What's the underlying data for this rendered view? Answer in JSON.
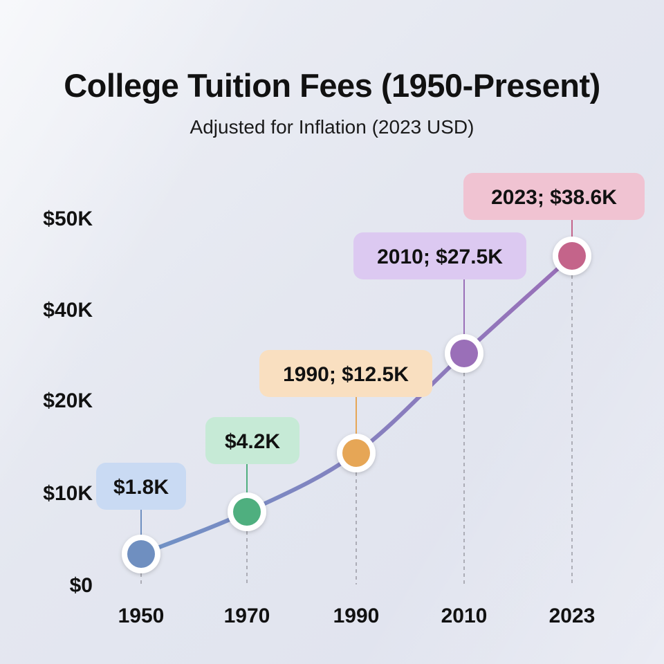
{
  "chart_data": {
    "type": "line",
    "title": "College Tuition Fees (1950-Present)",
    "subtitle": "Adjusted for Inflation (2023 USD)",
    "xlabel": "",
    "ylabel": "",
    "y_ticks": [
      "$50K",
      "$40K",
      "$20K",
      "$10K",
      "$0"
    ],
    "categories": [
      "1950",
      "1970",
      "1990",
      "2010",
      "2023"
    ],
    "points": [
      {
        "year": "1950",
        "value": 1.8,
        "label": "$1.8K",
        "color": "#6f8fc0",
        "tag_bg": "#c9daf3"
      },
      {
        "year": "1970",
        "value": 4.2,
        "label": "$4.2K",
        "color": "#4faf7f",
        "tag_bg": "#c6ead6"
      },
      {
        "year": "1990",
        "value": 12.5,
        "label": "1990; $12.5K",
        "color": "#e6a656",
        "tag_bg": "#f9dfc0"
      },
      {
        "year": "2010",
        "value": 27.5,
        "label": "2010; $27.5K",
        "color": "#9a6fb8",
        "tag_bg": "#dcc9f1"
      },
      {
        "year": "2023",
        "value": 38.6,
        "label": "2023; $38.6K",
        "color": "#c4648a",
        "tag_bg": "#f0c3d2"
      }
    ],
    "line_color_start": "#6f93c6",
    "line_color_end": "#9a6fb8"
  }
}
